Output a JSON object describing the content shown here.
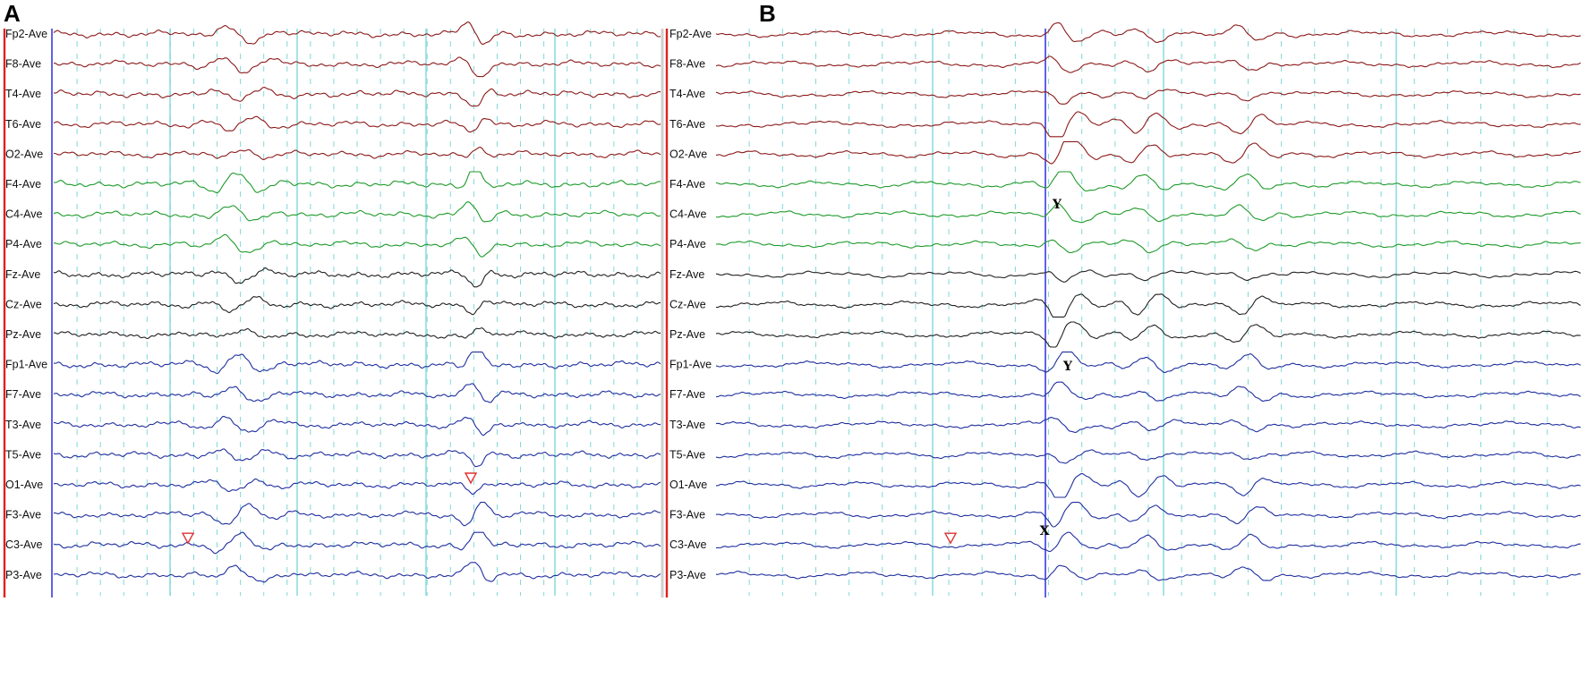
{
  "panels": [
    {
      "letter": "A",
      "channels": [
        {
          "label": "Fp2-Ave",
          "group": "right"
        },
        {
          "label": "F8-Ave",
          "group": "right"
        },
        {
          "label": "T4-Ave",
          "group": "right"
        },
        {
          "label": "T6-Ave",
          "group": "right"
        },
        {
          "label": "O2-Ave",
          "group": "right"
        },
        {
          "label": "F4-Ave",
          "group": "central-right"
        },
        {
          "label": "C4-Ave",
          "group": "central-right"
        },
        {
          "label": "P4-Ave",
          "group": "central-right"
        },
        {
          "label": "Fz-Ave",
          "group": "midline"
        },
        {
          "label": "Cz-Ave",
          "group": "midline"
        },
        {
          "label": "Pz-Ave",
          "group": "midline"
        },
        {
          "label": "Fp1-Ave",
          "group": "left"
        },
        {
          "label": "F7-Ave",
          "group": "left"
        },
        {
          "label": "T3-Ave",
          "group": "left"
        },
        {
          "label": "T5-Ave",
          "group": "left"
        },
        {
          "label": "O1-Ave",
          "group": "left"
        },
        {
          "label": "F3-Ave",
          "group": "left"
        },
        {
          "label": "C3-Ave",
          "group": "left"
        },
        {
          "label": "P3-Ave",
          "group": "left"
        }
      ],
      "event_markers": 2,
      "annotations": []
    },
    {
      "letter": "B",
      "channels": [
        {
          "label": "Fp2-Ave",
          "group": "right"
        },
        {
          "label": "F8-Ave",
          "group": "right"
        },
        {
          "label": "T4-Ave",
          "group": "right"
        },
        {
          "label": "T6-Ave",
          "group": "right"
        },
        {
          "label": "O2-Ave",
          "group": "right"
        },
        {
          "label": "F4-Ave",
          "group": "central-right"
        },
        {
          "label": "C4-Ave",
          "group": "central-right"
        },
        {
          "label": "P4-Ave",
          "group": "central-right"
        },
        {
          "label": "Fz-Ave",
          "group": "midline"
        },
        {
          "label": "Cz-Ave",
          "group": "midline"
        },
        {
          "label": "Pz-Ave",
          "group": "midline"
        },
        {
          "label": "Fp1-Ave",
          "group": "left"
        },
        {
          "label": "F7-Ave",
          "group": "left"
        },
        {
          "label": "T3-Ave",
          "group": "left"
        },
        {
          "label": "T5-Ave",
          "group": "left"
        },
        {
          "label": "O1-Ave",
          "group": "left"
        },
        {
          "label": "F3-Ave",
          "group": "left"
        },
        {
          "label": "C3-Ave",
          "group": "left"
        },
        {
          "label": "P3-Ave",
          "group": "left"
        }
      ],
      "event_markers": 1,
      "annotations": [
        "Y",
        "Y",
        "X"
      ]
    }
  ],
  "colors": {
    "right": "#8b1a1a",
    "central-right": "#1e9a2a",
    "midline": "#222222",
    "left": "#1f2f9e",
    "time_grid": "#7fd8d8",
    "cursor_line": "#3a3ae0",
    "left_border": "#e02020",
    "event_marker": "#e03030"
  }
}
